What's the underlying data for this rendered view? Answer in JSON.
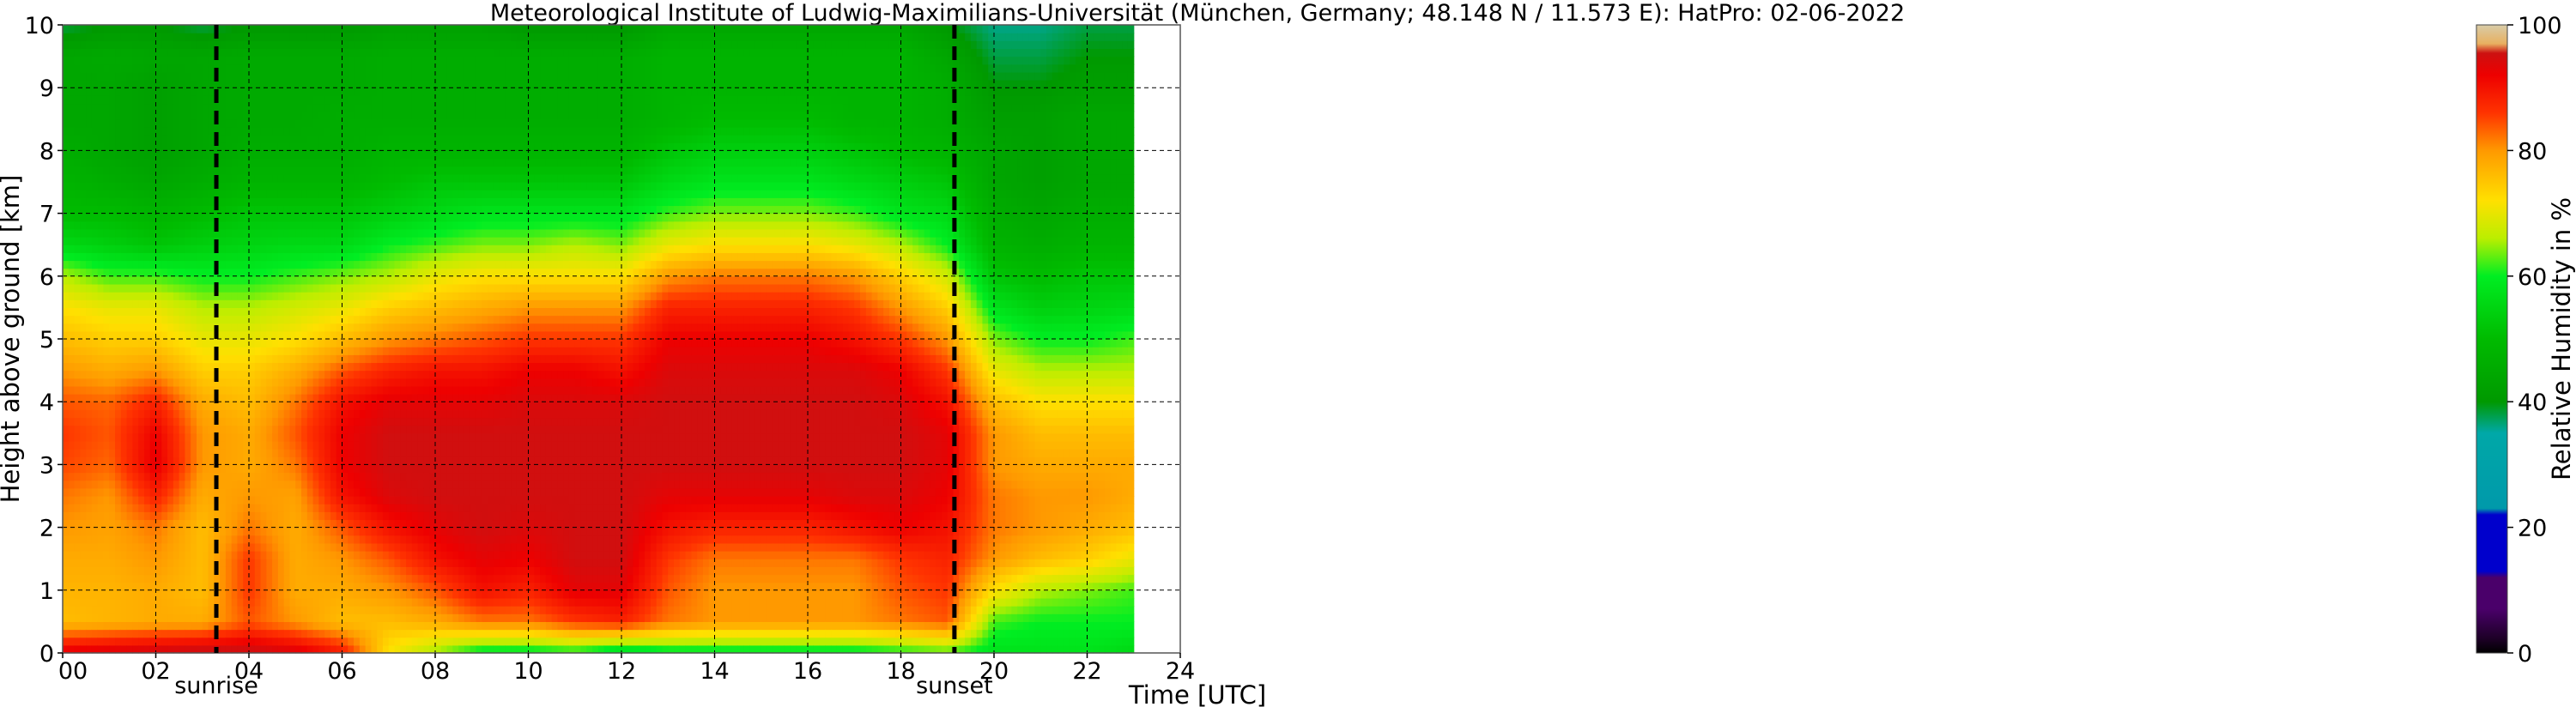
{
  "chart_data": {
    "type": "heatmap",
    "title": "Meteorological Institute of Ludwig-Maximilians-Universität (München, Germany; 48.148 N / 11.573 E):    HatPro: 02-06-2022",
    "xlabel": "Time [UTC]",
    "ylabel": "Height above ground [km]",
    "xlim": [
      0,
      24
    ],
    "ylim": [
      0,
      10
    ],
    "x_tick_labels": [
      "00",
      "02",
      "04",
      "06",
      "08",
      "10",
      "12",
      "14",
      "16",
      "18",
      "20",
      "22",
      "24"
    ],
    "y_tick_labels": [
      "0",
      "1",
      "2",
      "3",
      "4",
      "5",
      "6",
      "7",
      "8",
      "9",
      "10"
    ],
    "grid": true,
    "data_end_hour": 23.0,
    "colorbar": {
      "label": "Relative Humidity in %",
      "range": [
        0,
        100
      ],
      "tick_labels": [
        "0",
        "20",
        "40",
        "60",
        "80",
        "100"
      ]
    },
    "annotations": [
      {
        "text": "sunrise",
        "x": 3.3
      },
      {
        "text": "sunset",
        "x": 19.15
      }
    ],
    "height_levels_km": [
      0.05,
      0.5,
      1.0,
      1.5,
      2.0,
      2.5,
      3.0,
      3.5,
      4.0,
      4.5,
      5.0,
      5.5,
      6.0,
      6.5,
      7.0,
      7.5,
      8.0,
      8.5,
      9.0,
      9.5,
      10.0
    ],
    "profiles": [
      {
        "t": 0,
        "rh": [
          92,
          76,
          77,
          78,
          80,
          82,
          85,
          86,
          84,
          80,
          76,
          72,
          66,
          56,
          50,
          48,
          46,
          44,
          44,
          44,
          38
        ]
      },
      {
        "t": 1,
        "rh": [
          93,
          77,
          77,
          78,
          79,
          80,
          83,
          84,
          83,
          78,
          74,
          70,
          62,
          54,
          50,
          46,
          44,
          44,
          44,
          45,
          40
        ]
      },
      {
        "t": 2,
        "rh": [
          94,
          78,
          78,
          80,
          82,
          88,
          93,
          92,
          88,
          80,
          74,
          70,
          62,
          52,
          48,
          44,
          42,
          42,
          42,
          44,
          40
        ]
      },
      {
        "t": 3,
        "rh": [
          95,
          78,
          76,
          76,
          76,
          78,
          80,
          80,
          78,
          74,
          70,
          66,
          60,
          54,
          50,
          46,
          44,
          44,
          44,
          44,
          38
        ]
      },
      {
        "t": 4,
        "rh": [
          95,
          84,
          86,
          86,
          82,
          80,
          78,
          78,
          76,
          74,
          70,
          66,
          60,
          55,
          52,
          48,
          46,
          45,
          45,
          45,
          40
        ]
      },
      {
        "t": 5,
        "rh": [
          93,
          80,
          78,
          78,
          78,
          79,
          82,
          84,
          82,
          78,
          72,
          68,
          62,
          56,
          52,
          48,
          46,
          45,
          45,
          45,
          40
        ]
      },
      {
        "t": 6,
        "rh": [
          88,
          76,
          78,
          80,
          84,
          90,
          92,
          92,
          90,
          84,
          76,
          70,
          64,
          56,
          52,
          48,
          46,
          46,
          45,
          45,
          40
        ]
      },
      {
        "t": 7,
        "rh": [
          72,
          76,
          80,
          84,
          90,
          94,
          95,
          95,
          93,
          88,
          80,
          74,
          66,
          60,
          54,
          50,
          48,
          46,
          46,
          46,
          42
        ]
      },
      {
        "t": 8,
        "rh": [
          66,
          78,
          84,
          90,
          93,
          95,
          95,
          95,
          93,
          90,
          82,
          76,
          70,
          62,
          56,
          52,
          48,
          46,
          46,
          46,
          42
        ]
      },
      {
        "t": 9,
        "rh": [
          60,
          82,
          90,
          93,
          95,
          95,
          95,
          95,
          93,
          90,
          84,
          78,
          72,
          64,
          58,
          52,
          48,
          46,
          46,
          46,
          42
        ]
      },
      {
        "t": 10,
        "rh": [
          60,
          82,
          88,
          92,
          94,
          95,
          95,
          95,
          94,
          92,
          86,
          80,
          72,
          64,
          58,
          52,
          48,
          46,
          46,
          46,
          40
        ]
      },
      {
        "t": 11,
        "rh": [
          62,
          86,
          93,
          95,
          95,
          95,
          95,
          95,
          94,
          92,
          86,
          80,
          72,
          66,
          58,
          52,
          48,
          46,
          46,
          46,
          40
        ]
      },
      {
        "t": 12,
        "rh": [
          58,
          88,
          93,
          95,
          95,
          95,
          95,
          95,
          94,
          90,
          86,
          80,
          72,
          64,
          58,
          52,
          48,
          46,
          46,
          46,
          40
        ]
      },
      {
        "t": 13,
        "rh": [
          60,
          82,
          84,
          86,
          90,
          93,
          95,
          95,
          95,
          94,
          92,
          88,
          80,
          70,
          62,
          56,
          52,
          48,
          48,
          48,
          44
        ]
      },
      {
        "t": 14,
        "rh": [
          60,
          80,
          80,
          82,
          88,
          93,
          95,
          95,
          95,
          94,
          92,
          88,
          82,
          72,
          64,
          58,
          54,
          50,
          48,
          48,
          44
        ]
      },
      {
        "t": 15,
        "rh": [
          60,
          80,
          80,
          82,
          88,
          93,
          95,
          95,
          95,
          94,
          92,
          88,
          82,
          72,
          64,
          58,
          54,
          50,
          48,
          48,
          44
        ]
      },
      {
        "t": 16,
        "rh": [
          60,
          80,
          80,
          82,
          88,
          93,
          95,
          95,
          95,
          94,
          92,
          88,
          82,
          72,
          64,
          58,
          54,
          50,
          48,
          48,
          44
        ]
      },
      {
        "t": 17,
        "rh": [
          60,
          80,
          80,
          82,
          90,
          94,
          95,
          95,
          95,
          94,
          90,
          86,
          80,
          70,
          62,
          56,
          52,
          48,
          48,
          48,
          44
        ]
      },
      {
        "t": 18,
        "rh": [
          62,
          82,
          84,
          86,
          92,
          94,
          95,
          95,
          94,
          92,
          86,
          80,
          74,
          66,
          58,
          54,
          50,
          48,
          48,
          48,
          44
        ]
      },
      {
        "t": 19,
        "rh": [
          64,
          84,
          86,
          88,
          90,
          92,
          93,
          93,
          90,
          86,
          80,
          74,
          68,
          60,
          56,
          52,
          48,
          46,
          46,
          44,
          40
        ]
      },
      {
        "t": 20,
        "rh": [
          58,
          62,
          72,
          80,
          82,
          82,
          80,
          80,
          76,
          70,
          64,
          58,
          52,
          48,
          46,
          44,
          44,
          42,
          40,
          38,
          36
        ]
      },
      {
        "t": 21,
        "rh": [
          58,
          60,
          66,
          76,
          80,
          80,
          78,
          76,
          72,
          66,
          60,
          54,
          50,
          46,
          44,
          42,
          42,
          42,
          40,
          38,
          36
        ]
      },
      {
        "t": 22,
        "rh": [
          58,
          60,
          64,
          74,
          78,
          80,
          78,
          76,
          72,
          66,
          60,
          55,
          52,
          48,
          46,
          44,
          44,
          44,
          42,
          40,
          38
        ]
      },
      {
        "t": 23,
        "rh": [
          56,
          60,
          62,
          70,
          76,
          78,
          78,
          76,
          72,
          66,
          62,
          56,
          52,
          48,
          46,
          44,
          44,
          44,
          42,
          40,
          38
        ]
      }
    ]
  }
}
